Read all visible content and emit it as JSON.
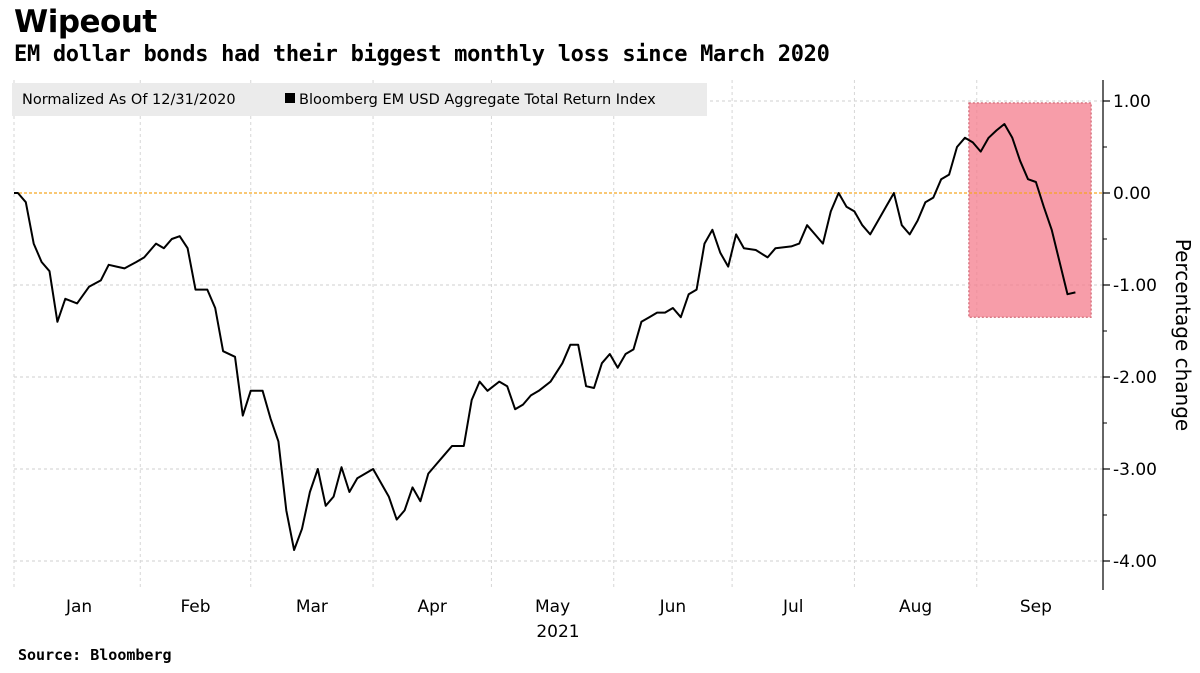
{
  "title": "Wipeout",
  "subtitle": "EM dollar bonds had their biggest monthly loss since March 2020",
  "source": "Source: Bloomberg",
  "chart_data": {
    "type": "line",
    "legend": {
      "note": "Normalized As Of 12/31/2020",
      "series_label": "Bloomberg EM USD Aggregate Total Return Index",
      "placement": "top-left"
    },
    "ylabel": "Percentage change",
    "ylim": [
      -4.4,
      1.2
    ],
    "yticks": [
      1.0,
      0.0,
      -1.0,
      -2.0,
      -3.0,
      -4.0
    ],
    "ytick_labels": [
      "1.00",
      "0.00",
      "-1.00",
      "-2.00",
      "-3.00",
      "-4.00"
    ],
    "x_tick_labels": [
      "Jan",
      "Feb",
      "Mar",
      "Apr",
      "May",
      "Jun",
      "Jul",
      "Aug",
      "Sep"
    ],
    "x_year_label": "2021",
    "grid": true,
    "reference_line": {
      "y": 0.0,
      "color": "#f5a623"
    },
    "highlight": {
      "x_start": "2021-08-30",
      "x_end": "2021-09-30",
      "y_top": 0.98,
      "y_bottom": -1.35,
      "color": "#f47c8c"
    },
    "series": [
      {
        "name": "Bloomberg EM USD Aggregate Total Return Index",
        "color": "#000000",
        "points": [
          [
            "2020-12-31",
            0.0
          ],
          [
            "2021-01-01",
            0.0
          ],
          [
            "2021-01-03",
            -0.1
          ],
          [
            "2021-01-05",
            -0.55
          ],
          [
            "2021-01-07",
            -0.75
          ],
          [
            "2021-01-09",
            -0.85
          ],
          [
            "2021-01-11",
            -1.4
          ],
          [
            "2021-01-13",
            -1.15
          ],
          [
            "2021-01-16",
            -1.2
          ],
          [
            "2021-01-19",
            -1.02
          ],
          [
            "2021-01-22",
            -0.95
          ],
          [
            "2021-01-24",
            -0.78
          ],
          [
            "2021-01-26",
            -0.8
          ],
          [
            "2021-01-28",
            -0.82
          ],
          [
            "2021-01-31",
            -0.75
          ],
          [
            "2021-02-02",
            -0.7
          ],
          [
            "2021-02-05",
            -0.55
          ],
          [
            "2021-02-07",
            -0.6
          ],
          [
            "2021-02-09",
            -0.5
          ],
          [
            "2021-02-11",
            -0.47
          ],
          [
            "2021-02-13",
            -0.6
          ],
          [
            "2021-02-15",
            -1.05
          ],
          [
            "2021-02-18",
            -1.05
          ],
          [
            "2021-02-20",
            -1.25
          ],
          [
            "2021-02-22",
            -1.72
          ],
          [
            "2021-02-25",
            -1.78
          ],
          [
            "2021-02-27",
            -2.42
          ],
          [
            "2021-03-01",
            -2.15
          ],
          [
            "2021-03-04",
            -2.15
          ],
          [
            "2021-03-06",
            -2.45
          ],
          [
            "2021-03-08",
            -2.7
          ],
          [
            "2021-03-10",
            -3.45
          ],
          [
            "2021-03-12",
            -3.88
          ],
          [
            "2021-03-14",
            -3.65
          ],
          [
            "2021-03-16",
            -3.25
          ],
          [
            "2021-03-18",
            -3.0
          ],
          [
            "2021-03-20",
            -3.4
          ],
          [
            "2021-03-22",
            -3.3
          ],
          [
            "2021-03-24",
            -2.98
          ],
          [
            "2021-03-26",
            -3.25
          ],
          [
            "2021-03-28",
            -3.1
          ],
          [
            "2021-03-30",
            -3.05
          ],
          [
            "2021-04-01",
            -3.0
          ],
          [
            "2021-04-03",
            -3.15
          ],
          [
            "2021-04-05",
            -3.3
          ],
          [
            "2021-04-07",
            -3.55
          ],
          [
            "2021-04-09",
            -3.45
          ],
          [
            "2021-04-11",
            -3.2
          ],
          [
            "2021-04-13",
            -3.35
          ],
          [
            "2021-04-15",
            -3.05
          ],
          [
            "2021-04-17",
            -2.95
          ],
          [
            "2021-04-19",
            -2.85
          ],
          [
            "2021-04-21",
            -2.75
          ],
          [
            "2021-04-24",
            -2.75
          ],
          [
            "2021-04-26",
            -2.25
          ],
          [
            "2021-04-28",
            -2.05
          ],
          [
            "2021-04-30",
            -2.15
          ],
          [
            "2021-05-03",
            -2.05
          ],
          [
            "2021-05-05",
            -2.1
          ],
          [
            "2021-05-07",
            -2.35
          ],
          [
            "2021-05-09",
            -2.3
          ],
          [
            "2021-05-11",
            -2.2
          ],
          [
            "2021-05-13",
            -2.15
          ],
          [
            "2021-05-16",
            -2.05
          ],
          [
            "2021-05-19",
            -1.85
          ],
          [
            "2021-05-21",
            -1.65
          ],
          [
            "2021-05-23",
            -1.65
          ],
          [
            "2021-05-25",
            -2.1
          ],
          [
            "2021-05-27",
            -2.12
          ],
          [
            "2021-05-29",
            -1.85
          ],
          [
            "2021-05-31",
            -1.75
          ],
          [
            "2021-06-02",
            -1.9
          ],
          [
            "2021-06-04",
            -1.75
          ],
          [
            "2021-06-06",
            -1.7
          ],
          [
            "2021-06-08",
            -1.4
          ],
          [
            "2021-06-10",
            -1.35
          ],
          [
            "2021-06-12",
            -1.3
          ],
          [
            "2021-06-14",
            -1.3
          ],
          [
            "2021-06-16",
            -1.25
          ],
          [
            "2021-06-18",
            -1.35
          ],
          [
            "2021-06-20",
            -1.1
          ],
          [
            "2021-06-22",
            -1.05
          ],
          [
            "2021-06-24",
            -0.55
          ],
          [
            "2021-06-26",
            -0.4
          ],
          [
            "2021-06-28",
            -0.65
          ],
          [
            "2021-06-30",
            -0.8
          ],
          [
            "2021-07-02",
            -0.45
          ],
          [
            "2021-07-04",
            -0.6
          ],
          [
            "2021-07-07",
            -0.62
          ],
          [
            "2021-07-10",
            -0.7
          ],
          [
            "2021-07-12",
            -0.6
          ],
          [
            "2021-07-16",
            -0.58
          ],
          [
            "2021-07-18",
            -0.55
          ],
          [
            "2021-07-20",
            -0.35
          ],
          [
            "2021-07-22",
            -0.45
          ],
          [
            "2021-07-24",
            -0.55
          ],
          [
            "2021-07-26",
            -0.2
          ],
          [
            "2021-07-28",
            0.0
          ],
          [
            "2021-07-30",
            -0.15
          ],
          [
            "2021-08-01",
            -0.2
          ],
          [
            "2021-08-03",
            -0.35
          ],
          [
            "2021-08-05",
            -0.45
          ],
          [
            "2021-08-07",
            -0.3
          ],
          [
            "2021-08-09",
            -0.15
          ],
          [
            "2021-08-11",
            0.0
          ],
          [
            "2021-08-13",
            -0.35
          ],
          [
            "2021-08-15",
            -0.45
          ],
          [
            "2021-08-17",
            -0.3
          ],
          [
            "2021-08-19",
            -0.1
          ],
          [
            "2021-08-21",
            -0.05
          ],
          [
            "2021-08-23",
            0.15
          ],
          [
            "2021-08-25",
            0.2
          ],
          [
            "2021-08-27",
            0.5
          ],
          [
            "2021-08-29",
            0.6
          ],
          [
            "2021-08-31",
            0.55
          ],
          [
            "2021-09-02",
            0.45
          ],
          [
            "2021-09-04",
            0.6
          ],
          [
            "2021-09-06",
            0.68
          ],
          [
            "2021-09-08",
            0.75
          ],
          [
            "2021-09-10",
            0.6
          ],
          [
            "2021-09-12",
            0.35
          ],
          [
            "2021-09-14",
            0.15
          ],
          [
            "2021-09-16",
            0.12
          ],
          [
            "2021-09-18",
            -0.15
          ],
          [
            "2021-09-20",
            -0.4
          ],
          [
            "2021-09-22",
            -0.75
          ],
          [
            "2021-09-24",
            -1.1
          ],
          [
            "2021-09-26",
            -1.08
          ]
        ]
      }
    ]
  }
}
